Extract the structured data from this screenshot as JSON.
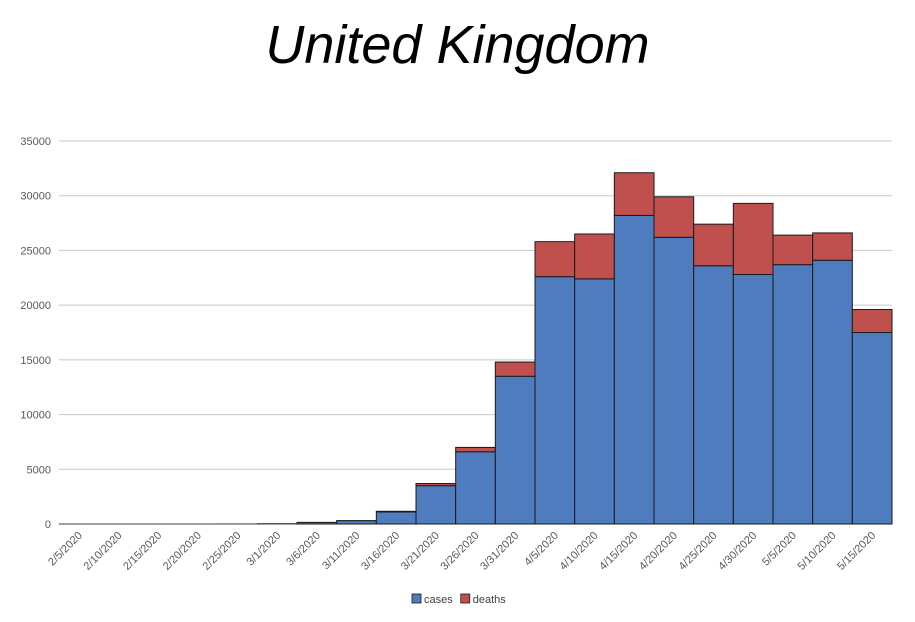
{
  "chart_data": {
    "type": "bar",
    "stacked": true,
    "title": "United Kingdom",
    "xlabel": "",
    "ylabel": "",
    "categories": [
      "2/5/2020",
      "2/10/2020",
      "2/15/2020",
      "2/20/2020",
      "2/25/2020",
      "3/1/2020",
      "3/6/2020",
      "3/11/2020",
      "3/16/2020",
      "3/21/2020",
      "3/26/2020",
      "3/31/2020",
      "4/5/2020",
      "4/10/2020",
      "4/15/2020",
      "4/20/2020",
      "4/25/2020",
      "4/30/2020",
      "5/5/2020",
      "5/10/2020",
      "5/15/2020"
    ],
    "series": [
      {
        "name": "cases",
        "color": "#4f7bbf",
        "values": [
          5,
          5,
          5,
          5,
          10,
          40,
          150,
          300,
          1100,
          3500,
          6600,
          13500,
          22600,
          22400,
          28200,
          26200,
          23600,
          22800,
          23700,
          24100,
          17500
        ]
      },
      {
        "name": "deaths",
        "color": "#c0504d",
        "values": [
          0,
          0,
          0,
          0,
          0,
          0,
          5,
          20,
          60,
          200,
          400,
          1300,
          3200,
          4100,
          3900,
          3700,
          3800,
          6500,
          2700,
          2500,
          2100
        ]
      }
    ],
    "ylim": [
      0,
      35000
    ],
    "yticks": [
      0,
      5000,
      10000,
      15000,
      20000,
      25000,
      30000,
      35000
    ],
    "grid": true,
    "legend_position": "bottom"
  }
}
